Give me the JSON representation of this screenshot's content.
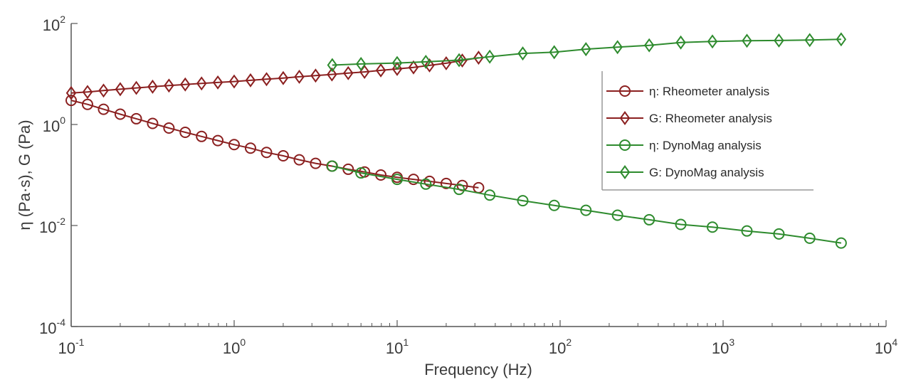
{
  "chart_data": {
    "type": "line",
    "title": "",
    "xlabel": "Frequency (Hz)",
    "ylabel": "η (Pa·s), G (Pa)",
    "xscale": "log",
    "yscale": "log",
    "xlim": [
      0.1,
      10000
    ],
    "ylim": [
      0.0001,
      100
    ],
    "x_ticks": [
      {
        "value": 0.1,
        "base": "10",
        "exp": "-1"
      },
      {
        "value": 1,
        "base": "10",
        "exp": "0"
      },
      {
        "value": 10,
        "base": "10",
        "exp": "1"
      },
      {
        "value": 100,
        "base": "10",
        "exp": "2"
      },
      {
        "value": 1000,
        "base": "10",
        "exp": "3"
      },
      {
        "value": 10000,
        "base": "10",
        "exp": "4"
      }
    ],
    "y_ticks": [
      {
        "value": 0.0001,
        "base": "10",
        "exp": "-4"
      },
      {
        "value": 0.01,
        "base": "10",
        "exp": "-2"
      },
      {
        "value": 1,
        "base": "10",
        "exp": "0"
      },
      {
        "value": 100,
        "base": "10",
        "exp": "2"
      }
    ],
    "grid": false,
    "legend_position": "right",
    "colors": {
      "rheometer": "#8b2020",
      "dynomag": "#2e8b2e",
      "axis": "#555555"
    },
    "series": [
      {
        "name": "η: Rheometer analysis",
        "marker": "circle",
        "color": "#8b2020",
        "x": [
          0.1,
          0.126,
          0.158,
          0.2,
          0.251,
          0.316,
          0.398,
          0.501,
          0.631,
          0.794,
          1.0,
          1.26,
          1.58,
          2.0,
          2.51,
          3.16,
          3.98,
          5.01,
          6.31,
          7.94,
          10.0,
          12.6,
          15.8,
          20.0,
          25.1,
          31.6
        ],
        "y": [
          3.0,
          2.5,
          2.0,
          1.6,
          1.3,
          1.05,
          0.85,
          0.7,
          0.58,
          0.48,
          0.4,
          0.34,
          0.28,
          0.24,
          0.2,
          0.17,
          0.15,
          0.13,
          0.115,
          0.1,
          0.09,
          0.082,
          0.075,
          0.068,
          0.062,
          0.056
        ]
      },
      {
        "name": "G: Rheometer analysis",
        "marker": "diamond",
        "color": "#8b2020",
        "x": [
          0.1,
          0.126,
          0.158,
          0.2,
          0.251,
          0.316,
          0.398,
          0.501,
          0.631,
          0.794,
          1.0,
          1.26,
          1.58,
          2.0,
          2.51,
          3.16,
          3.98,
          5.01,
          6.31,
          7.94,
          10.0,
          12.6,
          15.8,
          20.0,
          25.1,
          31.6
        ],
        "y": [
          4.2,
          4.4,
          4.7,
          5.0,
          5.3,
          5.6,
          5.9,
          6.2,
          6.5,
          6.8,
          7.1,
          7.5,
          7.9,
          8.3,
          8.8,
          9.3,
          9.8,
          10.4,
          11.0,
          11.8,
          12.6,
          13.5,
          14.8,
          16.3,
          18.5,
          21.0
        ]
      },
      {
        "name": "η: DynoMag analysis",
        "marker": "circle",
        "color": "#2e8b2e",
        "x": [
          4.0,
          6.0,
          10.0,
          15.0,
          24.0,
          37.0,
          59.0,
          92.0,
          144.0,
          225.0,
          352.0,
          550.0,
          860.0,
          1400.0,
          2200.0,
          3400.0,
          5300.0
        ],
        "y": [
          0.15,
          0.11,
          0.082,
          0.066,
          0.052,
          0.04,
          0.031,
          0.025,
          0.02,
          0.016,
          0.013,
          0.0105,
          0.0093,
          0.0078,
          0.0068,
          0.0056,
          0.0045
        ]
      },
      {
        "name": "G: DynoMag analysis",
        "marker": "diamond",
        "color": "#2e8b2e",
        "x": [
          4.0,
          6.0,
          10.0,
          15.0,
          24.0,
          37.0,
          59.0,
          92.0,
          144.0,
          225.0,
          352.0,
          550.0,
          860.0,
          1400.0,
          2200.0,
          3400.0,
          5300.0
        ],
        "y": [
          15.0,
          15.8,
          16.5,
          17.4,
          18.8,
          22.0,
          25.5,
          27.0,
          31.0,
          34.0,
          37.0,
          42.0,
          44.0,
          45.5,
          46.0,
          47.0,
          48.5
        ]
      }
    ]
  }
}
